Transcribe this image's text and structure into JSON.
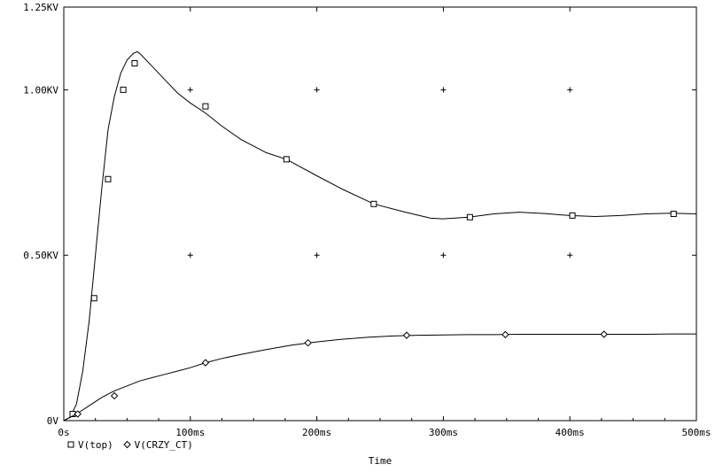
{
  "chart_data": {
    "type": "line",
    "xlabel": "Time",
    "ylabel": "",
    "xlim": [
      0,
      500
    ],
    "ylim": [
      0,
      1.25
    ],
    "x_ticks": [
      0,
      100,
      200,
      300,
      400,
      500
    ],
    "x_tick_labels": [
      "0s",
      "100ms",
      "200ms",
      "300ms",
      "400ms",
      "500ms"
    ],
    "y_ticks": [
      0,
      0.5,
      1.0,
      1.25
    ],
    "y_tick_labels": [
      "0V",
      "0.50KV",
      "1.00KV",
      "1.25KV"
    ],
    "grid": "plus-markers",
    "legend_position": "bottom-left",
    "series": [
      {
        "name": "V(top)",
        "marker": "square",
        "color": "#000000",
        "x": [
          0,
          5,
          10,
          15,
          20,
          25,
          30,
          35,
          40,
          45,
          50,
          55,
          58,
          60,
          70,
          80,
          90,
          100,
          112,
          125,
          140,
          160,
          176,
          200,
          220,
          245,
          270,
          290,
          300,
          320,
          340,
          360,
          380,
          400,
          420,
          440,
          460,
          480,
          500
        ],
        "values": [
          0,
          0.01,
          0.05,
          0.15,
          0.3,
          0.5,
          0.7,
          0.88,
          0.98,
          1.05,
          1.09,
          1.11,
          1.115,
          1.11,
          1.07,
          1.03,
          0.99,
          0.96,
          0.93,
          0.89,
          0.85,
          0.81,
          0.79,
          0.74,
          0.7,
          0.655,
          0.63,
          0.612,
          0.61,
          0.615,
          0.625,
          0.63,
          0.626,
          0.62,
          0.617,
          0.62,
          0.625,
          0.627,
          0.625
        ],
        "markers_x": [
          7,
          24,
          35,
          47,
          56,
          112,
          176,
          245,
          321,
          402,
          482
        ],
        "markers_y": [
          0.02,
          0.37,
          0.73,
          1.0,
          1.08,
          0.95,
          0.79,
          0.655,
          0.615,
          0.62,
          0.625
        ]
      },
      {
        "name": "V(CRZY_CT)",
        "marker": "diamond",
        "color": "#000000",
        "x": [
          0,
          10,
          20,
          30,
          40,
          50,
          60,
          70,
          80,
          90,
          100,
          112,
          125,
          140,
          160,
          180,
          200,
          220,
          240,
          260,
          280,
          300,
          320,
          340,
          360,
          380,
          400,
          420,
          440,
          460,
          480,
          500
        ],
        "values": [
          0,
          0.02,
          0.045,
          0.07,
          0.09,
          0.105,
          0.12,
          0.13,
          0.14,
          0.15,
          0.16,
          0.175,
          0.188,
          0.2,
          0.215,
          0.228,
          0.238,
          0.246,
          0.252,
          0.256,
          0.258,
          0.259,
          0.26,
          0.26,
          0.261,
          0.261,
          0.261,
          0.261,
          0.261,
          0.261,
          0.262,
          0.262
        ],
        "markers_x": [
          11,
          40,
          112,
          193,
          271,
          349,
          427
        ],
        "markers_y": [
          0.02,
          0.075,
          0.175,
          0.235,
          0.258,
          0.26,
          0.261
        ]
      }
    ]
  }
}
